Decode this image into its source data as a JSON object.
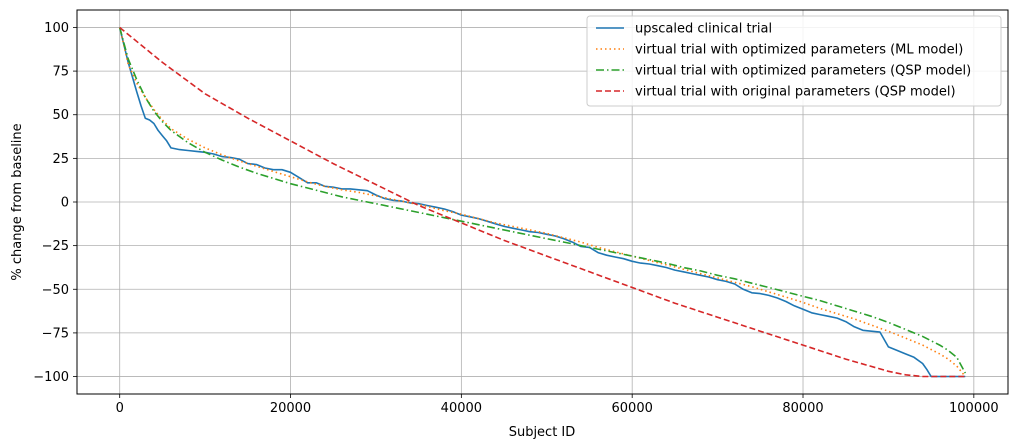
{
  "chart_data": {
    "type": "line",
    "xlabel": "Subject ID",
    "ylabel": "% change from baseline",
    "xlim": [
      -5000,
      104000
    ],
    "ylim": [
      -110,
      110
    ],
    "xticks": [
      0,
      20000,
      40000,
      60000,
      80000,
      100000
    ],
    "yticks": [
      -100,
      -75,
      -50,
      -25,
      0,
      25,
      50,
      75,
      100
    ],
    "grid": true,
    "legend_position": "top-right",
    "series": [
      {
        "name": "upscaled clinical trial",
        "color": "#1f77b4",
        "dash": "solid",
        "x": [
          0,
          1000,
          2000,
          2500,
          3000,
          3500,
          4000,
          4500,
          5000,
          5500,
          6000,
          7000,
          8000,
          9000,
          10000,
          11000,
          12000,
          13000,
          14000,
          15000,
          16000,
          17000,
          18000,
          19000,
          20000,
          21000,
          22000,
          23000,
          24000,
          25000,
          26000,
          27000,
          28000,
          29000,
          30000,
          31000,
          32000,
          33000,
          34000,
          35000,
          36000,
          37000,
          38000,
          39000,
          40000,
          41000,
          42000,
          43000,
          44000,
          45000,
          46000,
          47000,
          48000,
          49000,
          50000,
          51000,
          52000,
          53000,
          54000,
          55000,
          56000,
          57000,
          58000,
          59000,
          60000,
          61000,
          62000,
          63000,
          64000,
          65000,
          66000,
          67000,
          68000,
          69000,
          70000,
          71000,
          72000,
          73000,
          74000,
          75000,
          76000,
          77000,
          78000,
          79000,
          80000,
          81000,
          82000,
          83000,
          84000,
          85000,
          86000,
          87000,
          88000,
          89000,
          90000,
          91000,
          92000,
          93000,
          94000,
          94500,
          95000,
          99000
        ],
        "y": [
          100,
          80,
          63,
          55,
          48,
          47,
          45,
          41,
          38,
          35,
          31,
          30,
          29.5,
          29,
          28.5,
          27.5,
          26,
          25.5,
          24.5,
          22,
          21.5,
          19.5,
          18.5,
          18.5,
          17,
          14,
          11,
          11,
          9,
          8.5,
          7.5,
          7.5,
          7,
          6.5,
          4,
          2,
          1,
          0.5,
          -0.5,
          -1,
          -2,
          -3,
          -4,
          -5.5,
          -7.5,
          -8.5,
          -9.5,
          -11,
          -12.5,
          -14,
          -15,
          -16,
          -17,
          -17.5,
          -18.5,
          -19.5,
          -21,
          -23,
          -25.5,
          -26,
          -29,
          -30.5,
          -31.5,
          -32.5,
          -34,
          -35,
          -35.5,
          -36.5,
          -37.5,
          -39,
          -40,
          -41,
          -42,
          -43,
          -44.5,
          -45.5,
          -47,
          -50,
          -52,
          -52.5,
          -53.5,
          -55,
          -57,
          -59.5,
          -61.5,
          -63.5,
          -64.5,
          -65.5,
          -66.5,
          -68.5,
          -71.5,
          -73.5,
          -74,
          -74.5,
          -83,
          -85,
          -87,
          -89,
          -92.5,
          -96,
          -100,
          -100
        ]
      },
      {
        "name": "virtual trial with optimized parameters (ML model)",
        "color": "#ff7f0e",
        "dash": "dotted",
        "x": [
          0,
          1000,
          2000,
          3000,
          4000,
          5000,
          6000,
          8000,
          10000,
          12000,
          14000,
          16000,
          18000,
          20000,
          22000,
          24000,
          26000,
          28000,
          30000,
          32000,
          34000,
          36000,
          38000,
          40000,
          42000,
          44000,
          46000,
          48000,
          50000,
          52000,
          54000,
          56000,
          58000,
          60000,
          62000,
          64000,
          66000,
          68000,
          70000,
          72000,
          74000,
          76000,
          78000,
          80000,
          82000,
          84000,
          86000,
          88000,
          90000,
          92000,
          94000,
          95000,
          96000,
          97000,
          98000,
          99000
        ],
        "y": [
          100,
          79,
          68,
          60,
          53,
          47,
          42,
          36,
          31,
          27,
          23.5,
          20.5,
          17.5,
          14.5,
          11.5,
          9,
          7,
          5.5,
          3.5,
          1.5,
          -0.5,
          -2.5,
          -5,
          -7,
          -9.5,
          -12,
          -14,
          -16,
          -18,
          -20.5,
          -23,
          -26,
          -28.5,
          -31,
          -33.5,
          -36,
          -38.5,
          -41,
          -43.5,
          -46,
          -48.5,
          -51.5,
          -54.5,
          -57.5,
          -61,
          -64,
          -67,
          -70.5,
          -74,
          -78,
          -82,
          -84.5,
          -87,
          -90,
          -94,
          -100
        ]
      },
      {
        "name": "virtual trial with optimized parameters (QSP model)",
        "color": "#2ca02c",
        "dash": "dashdot",
        "x": [
          0,
          1000,
          2000,
          3000,
          4000,
          5000,
          6000,
          8000,
          10000,
          12000,
          14000,
          16000,
          18000,
          20000,
          22000,
          24000,
          26000,
          28000,
          30000,
          32000,
          34000,
          36000,
          38000,
          40000,
          42000,
          44000,
          46000,
          48000,
          50000,
          52000,
          54000,
          56000,
          58000,
          60000,
          62000,
          64000,
          66000,
          68000,
          70000,
          72000,
          74000,
          76000,
          78000,
          80000,
          82000,
          84000,
          86000,
          88000,
          90000,
          92000,
          94000,
          95000,
          96000,
          97000,
          98000,
          99000
        ],
        "y": [
          100,
          82,
          70,
          60,
          52,
          46,
          41,
          34,
          28.5,
          24,
          20,
          16.5,
          13.5,
          10.5,
          8,
          5.5,
          3,
          1,
          -1,
          -3,
          -5,
          -7,
          -9,
          -11,
          -13,
          -15,
          -17,
          -19,
          -21,
          -23,
          -25,
          -27,
          -29,
          -31,
          -33,
          -35,
          -37.5,
          -39.5,
          -42,
          -44,
          -46.5,
          -49,
          -51.5,
          -54,
          -56.5,
          -59.5,
          -62.5,
          -65.5,
          -69,
          -73,
          -77,
          -79.5,
          -82,
          -85,
          -89,
          -98
        ]
      },
      {
        "name": "virtual trial with original parameters (QSP model)",
        "color": "#d62728",
        "dash": "dashed",
        "x": [
          0,
          5000,
          10000,
          15000,
          20000,
          25000,
          30000,
          35000,
          40000,
          45000,
          50000,
          55000,
          60000,
          65000,
          70000,
          75000,
          80000,
          85000,
          90000,
          92000,
          94000,
          96000,
          99000
        ],
        "y": [
          100,
          80,
          62,
          48,
          35,
          22,
          10,
          -2,
          -12,
          -22,
          -31,
          -40,
          -49,
          -58,
          -66,
          -74,
          -82,
          -90,
          -97,
          -99,
          -100,
          -100,
          -100
        ]
      }
    ]
  }
}
